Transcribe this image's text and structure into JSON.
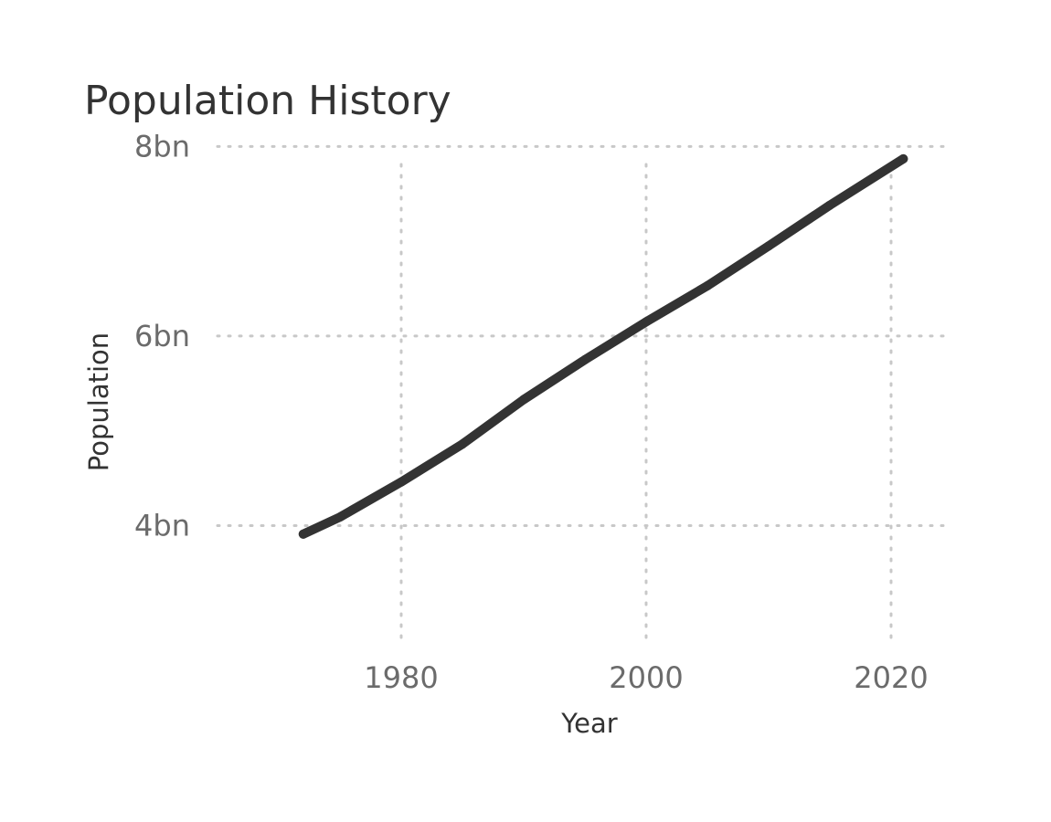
{
  "chart_data": {
    "type": "line",
    "title": "Population History",
    "xlabel": "Year",
    "ylabel": "Population",
    "xlim": [
      1965,
      2025
    ],
    "ylim": [
      2.8,
      8.1
    ],
    "x_ticks": [
      {
        "value": 1980,
        "label": "1980"
      },
      {
        "value": 2000,
        "label": "2000"
      },
      {
        "value": 2020,
        "label": "2020"
      }
    ],
    "y_ticks": [
      {
        "value": 4,
        "label": "4bn"
      },
      {
        "value": 6,
        "label": "6bn"
      },
      {
        "value": 8,
        "label": "8bn"
      }
    ],
    "grid": true,
    "legend": "none",
    "series": [
      {
        "name": "Population",
        "color": "#333333",
        "x": [
          1972,
          1975,
          1980,
          1985,
          1990,
          1995,
          2000,
          2005,
          2010,
          2015,
          2021
        ],
        "values": [
          3.91,
          4.09,
          4.46,
          4.86,
          5.33,
          5.75,
          6.15,
          6.53,
          6.95,
          7.38,
          7.87
        ]
      }
    ]
  }
}
